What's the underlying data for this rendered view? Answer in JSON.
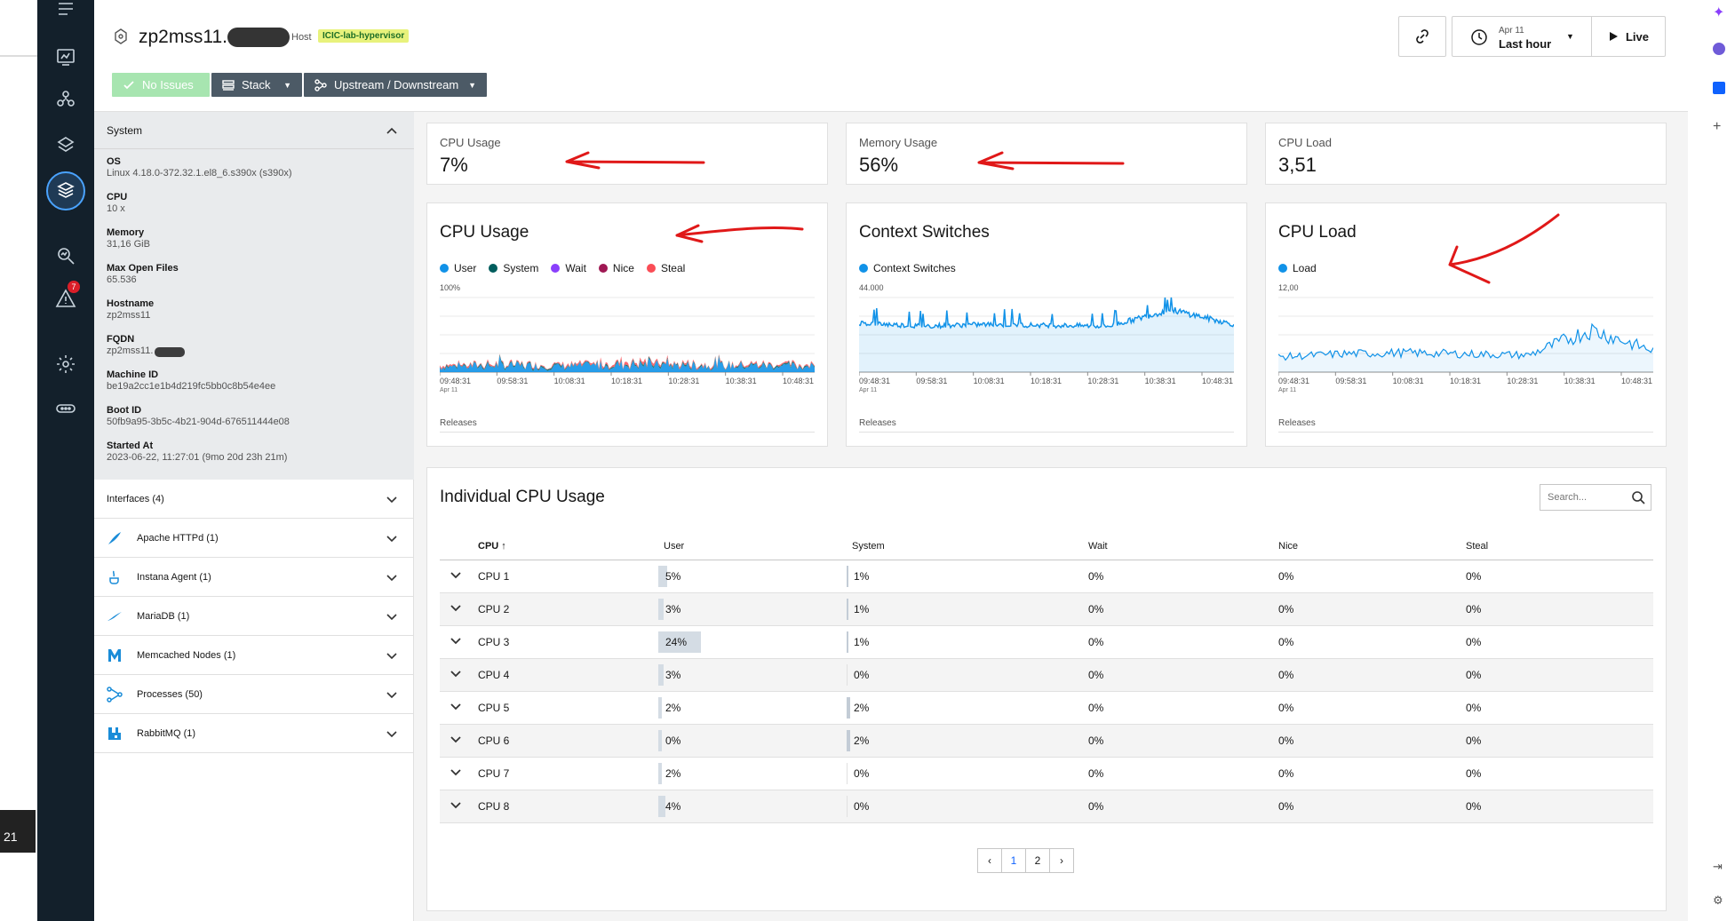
{
  "header": {
    "host_name": "zp2mss11.",
    "host_type": "Host",
    "zone_tag": "ICIC-lab-hypervisor",
    "no_issues_label": "No Issues",
    "stack_label": "Stack",
    "updown_label": "Upstream / Downstream",
    "time_date": "Apr 11",
    "time_range": "Last hour",
    "live_label": "Live"
  },
  "left_strip": {
    "bubble_count": "21"
  },
  "rail": {
    "alert_badge": "7"
  },
  "sidebar": {
    "system_title": "System",
    "props": [
      {
        "k": "OS",
        "v": "Linux 4.18.0-372.32.1.el8_6.s390x (s390x)"
      },
      {
        "k": "CPU",
        "v": "10 x"
      },
      {
        "k": "Memory",
        "v": "31,16 GiB"
      },
      {
        "k": "Max Open Files",
        "v": "65.536"
      },
      {
        "k": "Hostname",
        "v": "zp2mss11"
      },
      {
        "k": "FQDN",
        "v": "zp2mss11."
      },
      {
        "k": "Machine ID",
        "v": "be19a2cc1e1b4d219fc5bb0c8b54e4ee"
      },
      {
        "k": "Boot ID",
        "v": "50fb9a95-3b5c-4b21-904d-676511444e08"
      },
      {
        "k": "Started At",
        "v": "2023-06-22, 11:27:01 (9mo 20d 23h 21m)"
      }
    ],
    "sections": [
      {
        "label": "Interfaces (4)"
      },
      {
        "label": "Apache HTTPd (1)"
      },
      {
        "label": "Instana Agent (1)"
      },
      {
        "label": "MariaDB (1)"
      },
      {
        "label": "Memcached Nodes (1)"
      },
      {
        "label": "Processes (50)"
      },
      {
        "label": "RabbitMQ (1)"
      }
    ]
  },
  "kpis": [
    {
      "label": "CPU Usage",
      "value": "7%"
    },
    {
      "label": "Memory Usage",
      "value": "56%"
    },
    {
      "label": "CPU Load",
      "value": "3,51"
    }
  ],
  "charts": {
    "cpu": {
      "title": "CPU Usage",
      "legend": [
        {
          "name": "User",
          "color": "#1192e8"
        },
        {
          "name": "System",
          "color": "#005d5d"
        },
        {
          "name": "Wait",
          "color": "#8a3ffc"
        },
        {
          "name": "Nice",
          "color": "#9f1853"
        },
        {
          "name": "Steal",
          "color": "#fa4d56"
        }
      ],
      "ymax": "100%",
      "releases": "Releases"
    },
    "ctx": {
      "title": "Context Switches",
      "legend": [
        {
          "name": "Context Switches",
          "color": "#1192e8"
        }
      ],
      "ymax": "44.000",
      "releases": "Releases"
    },
    "load": {
      "title": "CPU Load",
      "legend": [
        {
          "name": "Load",
          "color": "#1192e8"
        }
      ],
      "ymax": "12,00",
      "releases": "Releases"
    },
    "x_ticks": [
      "09:48:31",
      "09:58:31",
      "10:08:31",
      "10:18:31",
      "10:28:31",
      "10:38:31",
      "10:48:31"
    ],
    "x_date": "Apr 11"
  },
  "chart_data": [
    {
      "type": "area",
      "title": "CPU Usage",
      "ylim": [
        0,
        100
      ],
      "x": [
        "09:48:31",
        "09:58:31",
        "10:08:31",
        "10:18:31",
        "10:28:31",
        "10:38:31",
        "10:48:31"
      ],
      "series": [
        {
          "name": "User",
          "values": [
            5,
            6,
            5,
            7,
            6,
            6,
            5
          ]
        },
        {
          "name": "System",
          "values": [
            1,
            1,
            1,
            1,
            1,
            1,
            1
          ]
        },
        {
          "name": "Wait",
          "values": [
            0,
            0,
            0,
            0,
            0,
            0,
            0
          ]
        },
        {
          "name": "Nice",
          "values": [
            0,
            0,
            0,
            0,
            0,
            0,
            0
          ]
        },
        {
          "name": "Steal",
          "values": [
            1,
            1,
            1,
            2,
            1,
            1,
            1
          ]
        }
      ]
    },
    {
      "type": "line",
      "title": "Context Switches",
      "ylim": [
        0,
        44000
      ],
      "x": [
        "09:48:31",
        "09:58:31",
        "10:08:31",
        "10:18:31",
        "10:28:31",
        "10:38:31",
        "10:48:31"
      ],
      "series": [
        {
          "name": "Context Switches",
          "values": [
            30000,
            28000,
            29000,
            28500,
            28000,
            38000,
            29000
          ]
        }
      ]
    },
    {
      "type": "line",
      "title": "CPU Load",
      "ylim": [
        0,
        12
      ],
      "x": [
        "09:48:31",
        "09:58:31",
        "10:08:31",
        "10:18:31",
        "10:28:31",
        "10:38:31",
        "10:48:31"
      ],
      "series": [
        {
          "name": "Load",
          "values": [
            2.5,
            3.0,
            3.2,
            3.0,
            2.8,
            7.0,
            3.5
          ]
        }
      ]
    }
  ],
  "table": {
    "title": "Individual CPU Usage",
    "search_placeholder": "Search...",
    "columns": [
      "CPU",
      "User",
      "System",
      "Wait",
      "Nice",
      "Steal"
    ],
    "rows": [
      {
        "cpu": "CPU 1",
        "user": "5%",
        "user_pct": 5,
        "system": "1%",
        "system_pct": 1,
        "wait": "0%",
        "nice": "0%",
        "steal": "0%"
      },
      {
        "cpu": "CPU 2",
        "user": "3%",
        "user_pct": 3,
        "system": "1%",
        "system_pct": 1,
        "wait": "0%",
        "nice": "0%",
        "steal": "0%"
      },
      {
        "cpu": "CPU 3",
        "user": "24%",
        "user_pct": 24,
        "system": "1%",
        "system_pct": 1,
        "wait": "0%",
        "nice": "0%",
        "steal": "0%"
      },
      {
        "cpu": "CPU 4",
        "user": "3%",
        "user_pct": 3,
        "system": "0%",
        "system_pct": 0,
        "wait": "0%",
        "nice": "0%",
        "steal": "0%"
      },
      {
        "cpu": "CPU 5",
        "user": "2%",
        "user_pct": 2,
        "system": "2%",
        "system_pct": 2,
        "wait": "0%",
        "nice": "0%",
        "steal": "0%"
      },
      {
        "cpu": "CPU 6",
        "user": "0%",
        "user_pct": 0,
        "system": "2%",
        "system_pct": 2,
        "wait": "0%",
        "nice": "0%",
        "steal": "0%"
      },
      {
        "cpu": "CPU 7",
        "user": "2%",
        "user_pct": 2,
        "system": "0%",
        "system_pct": 0,
        "wait": "0%",
        "nice": "0%",
        "steal": "0%"
      },
      {
        "cpu": "CPU 8",
        "user": "4%",
        "user_pct": 4,
        "system": "0%",
        "system_pct": 0,
        "wait": "0%",
        "nice": "0%",
        "steal": "0%"
      }
    ],
    "pages": [
      "1",
      "2"
    ],
    "current_page": "1"
  }
}
